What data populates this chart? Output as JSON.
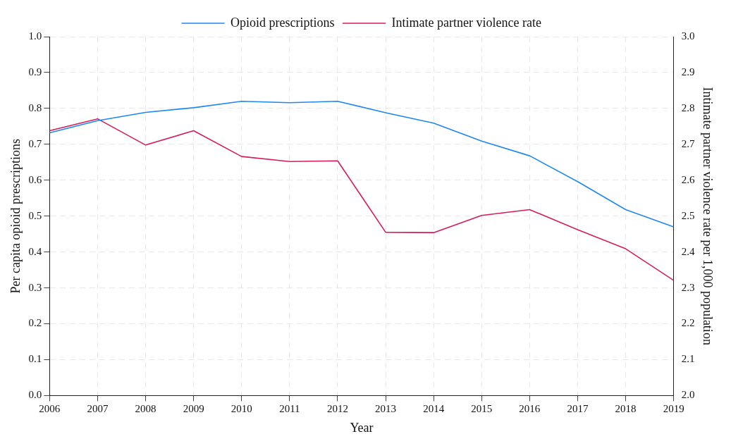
{
  "chart_data": {
    "type": "line",
    "xlabel": "Year",
    "ylabel": "Per capita opioid prescriptions",
    "y2label": "Intimate partner violence rate per 1,000 population",
    "x": [
      2006,
      2007,
      2008,
      2009,
      2010,
      2011,
      2012,
      2013,
      2014,
      2015,
      2016,
      2017,
      2018,
      2019
    ],
    "series": [
      {
        "name": "Opioid prescriptions",
        "color": "#1e88f0",
        "values": [
          0.732,
          0.766,
          0.789,
          0.802,
          0.82,
          0.816,
          0.82,
          0.788,
          0.759,
          0.709,
          0.668,
          0.596,
          0.518,
          0.47
        ]
      },
      {
        "name": "Intimate partner violence rate",
        "color": "#d81b5a",
        "axis": "y2",
        "values": [
          2.738,
          2.771,
          2.698,
          2.738,
          2.666,
          2.652,
          2.654,
          2.455,
          2.454,
          2.502,
          2.518,
          2.462,
          2.409,
          2.321
        ]
      }
    ],
    "xlim": [
      2006,
      2019
    ],
    "xticks": [
      2006,
      2007,
      2008,
      2009,
      2010,
      2011,
      2012,
      2013,
      2014,
      2015,
      2016,
      2017,
      2018,
      2019
    ],
    "ylim": [
      0,
      1
    ],
    "yticks": [
      {
        "value": 0,
        "label": "0.0"
      },
      0.1,
      0.2,
      0.3,
      0.4,
      0.5,
      0.6,
      0.7,
      0.8,
      0.9,
      {
        "value": 1,
        "label": "1.0"
      }
    ],
    "y2lim": [
      2,
      3
    ],
    "y2ticks": [
      {
        "value": 2,
        "label": "2.0"
      },
      2.1,
      2.2,
      2.3,
      2.4,
      2.5,
      2.6,
      2.7,
      2.8,
      2.9,
      {
        "value": 3,
        "label": "3.0"
      }
    ],
    "grid": true,
    "legend": "top",
    "marker": "none",
    "line_style": "solid"
  }
}
